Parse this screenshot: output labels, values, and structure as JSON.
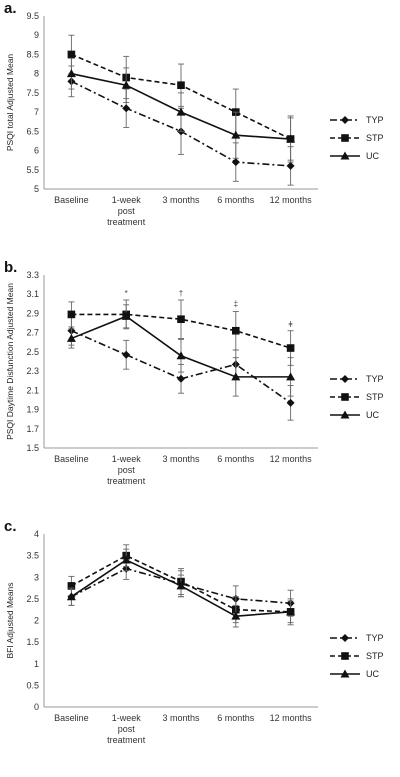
{
  "chart_data": [
    {
      "type": "line",
      "panel_label": "a.",
      "ylabel": "PSQI total Adjusted Mean",
      "ylim": [
        5,
        9.5
      ],
      "ytick_step": 0.5,
      "ytick_decimals": 1,
      "yticks_trim": true,
      "categories": [
        "Baseline",
        "1-week post treatment",
        "3 months",
        "6 months",
        "12 months"
      ],
      "categories_lines": [
        [
          "Baseline"
        ],
        [
          "1-week",
          "post",
          "treatment"
        ],
        [
          "3 months"
        ],
        [
          "6 months"
        ],
        [
          "12 months"
        ]
      ],
      "grid": false,
      "legend_position": "right",
      "series": [
        {
          "name": "TYP",
          "style": "dashdot",
          "marker": "diamond",
          "values": [
            7.8,
            7.1,
            6.5,
            5.7,
            5.6
          ],
          "err": [
            0.4,
            0.5,
            0.6,
            0.5,
            0.5
          ]
        },
        {
          "name": "STP",
          "style": "dashed",
          "marker": "square",
          "values": [
            8.5,
            7.9,
            7.7,
            7.0,
            6.3
          ],
          "err": [
            0.5,
            0.55,
            0.55,
            0.6,
            0.6
          ]
        },
        {
          "name": "UC",
          "style": "solid",
          "marker": "triangle",
          "values": [
            8.0,
            7.7,
            7.0,
            6.4,
            6.3
          ],
          "err": [
            0.4,
            0.45,
            0.5,
            0.6,
            0.55
          ]
        }
      ],
      "annotations": []
    },
    {
      "type": "line",
      "panel_label": "b.",
      "ylabel": "PSQI Daytime Disfunction Adjusted Mean",
      "ylim": [
        1.5,
        3.3
      ],
      "ytick_step": 0.2,
      "ytick_decimals": 1,
      "yticks_trim": false,
      "categories": [
        "Baseline",
        "1-week post treatment",
        "3 months",
        "6 months",
        "12 months"
      ],
      "categories_lines": [
        [
          "Baseline"
        ],
        [
          "1-week",
          "post",
          "treatment"
        ],
        [
          "3 months"
        ],
        [
          "6 months"
        ],
        [
          "12 months"
        ]
      ],
      "grid": false,
      "legend_position": "right",
      "series": [
        {
          "name": "TYP",
          "style": "dashdot",
          "marker": "diamond",
          "values": [
            2.72,
            2.47,
            2.22,
            2.37,
            1.97
          ],
          "err": [
            0.15,
            0.15,
            0.15,
            0.15,
            0.18
          ]
        },
        {
          "name": "STP",
          "style": "dashed",
          "marker": "square",
          "values": [
            2.89,
            2.89,
            2.84,
            2.72,
            2.54
          ],
          "err": [
            0.13,
            0.15,
            0.2,
            0.2,
            0.18
          ]
        },
        {
          "name": "UC",
          "style": "solid",
          "marker": "triangle",
          "values": [
            2.64,
            2.87,
            2.46,
            2.24,
            2.24
          ],
          "err": [
            0.1,
            0.12,
            0.17,
            0.2,
            0.2
          ]
        }
      ],
      "annotations": [
        {
          "category_index": 1,
          "symbol": "*",
          "y": 3.08
        },
        {
          "category_index": 2,
          "symbol": "†",
          "y": 3.08
        },
        {
          "category_index": 3,
          "symbol": "‡",
          "y": 2.97
        },
        {
          "category_index": 4,
          "symbol": "ǂ",
          "y": 2.76
        }
      ]
    },
    {
      "type": "line",
      "panel_label": "c.",
      "ylabel": "BFI Adjusted Means",
      "ylim": [
        0,
        4
      ],
      "ytick_step": 0.5,
      "ytick_decimals": 1,
      "yticks_trim": true,
      "categories": [
        "Baseline",
        "1-week post treatment",
        "3 months",
        "6 months",
        "12 months"
      ],
      "categories_lines": [
        [
          "Baseline"
        ],
        [
          "1-week",
          "post",
          "treatment"
        ],
        [
          "3 months"
        ],
        [
          "6 months"
        ],
        [
          "12 months"
        ]
      ],
      "grid": false,
      "legend_position": "right",
      "series": [
        {
          "name": "TYP",
          "style": "dashdot",
          "marker": "diamond",
          "values": [
            2.55,
            3.2,
            2.85,
            2.5,
            2.4
          ],
          "err": [
            0.2,
            0.25,
            0.3,
            0.3,
            0.3
          ]
        },
        {
          "name": "STP",
          "style": "dashed",
          "marker": "square",
          "values": [
            2.8,
            3.5,
            2.9,
            2.25,
            2.2
          ],
          "err": [
            0.22,
            0.25,
            0.3,
            0.3,
            0.3
          ]
        },
        {
          "name": "UC",
          "style": "solid",
          "marker": "triangle",
          "values": [
            2.55,
            3.4,
            2.8,
            2.1,
            2.2
          ],
          "err": [
            0.2,
            0.25,
            0.25,
            0.25,
            0.25
          ]
        }
      ],
      "annotations": []
    }
  ]
}
